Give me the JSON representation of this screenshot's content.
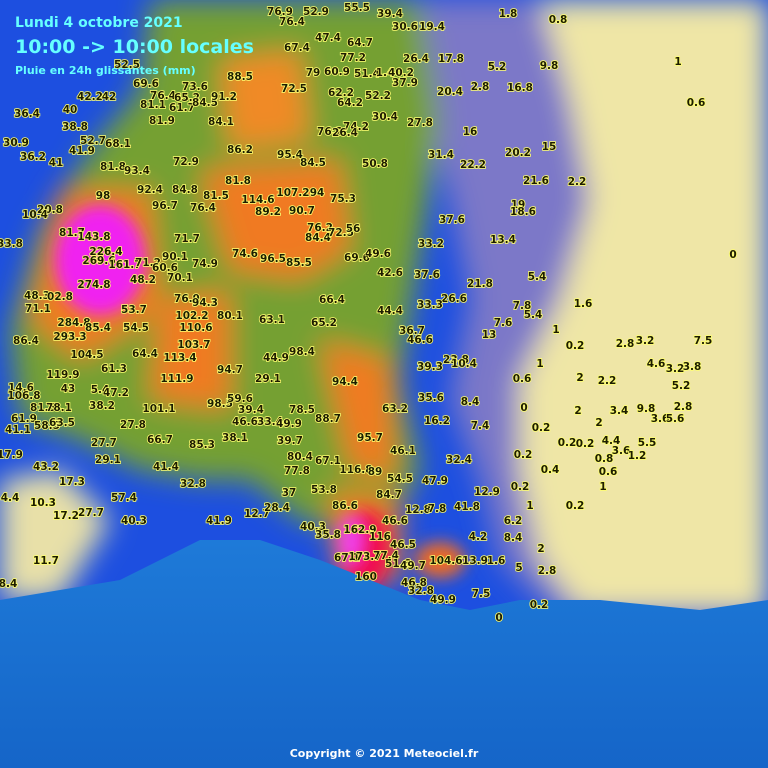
{
  "header": {
    "date": "Lundi 4 octobre 2021",
    "period": "10:00 -> 10:00 locales",
    "subtitle": "Pluie en 24h glissantes (mm)"
  },
  "footer": {
    "copyright": "Copyright © 2021 Meteociel.fr"
  },
  "stations": [
    "76.9",
    "52.9",
    "55.5",
    "39.4",
    "1.8",
    "0.8",
    "76.4",
    "30.6",
    "19.4",
    "47.4",
    "64.7",
    "67.4",
    "77.2",
    "26.4",
    "17.8",
    "5.2",
    "9.8",
    "1",
    "88.5",
    "79",
    "60.9",
    "51.4",
    "1.4",
    "40.2",
    "37.9",
    "20.4",
    "2.8",
    "16.8",
    "0.6",
    "52.5",
    "69.6",
    "76.4",
    "65.2",
    "81.1",
    "61.7",
    "84.5",
    "73.6",
    "91.2",
    "72.5",
    "62.2",
    "64.2",
    "52.2",
    "42.2",
    "42",
    "36.4",
    "40",
    "38.8",
    "81.9",
    "84.1",
    "30.4",
    "27.8",
    "16",
    "74.2",
    "76.2",
    "26.4",
    "30.9",
    "52.7",
    "68.1",
    "41.9",
    "36.2",
    "41",
    "86.2",
    "95.4",
    "84.5",
    "50.8",
    "31.4",
    "22.2",
    "20.2",
    "15",
    "81.8",
    "93.4",
    "72.9",
    "81.8",
    "21.6",
    "2.2",
    "92.4",
    "84.8",
    "81.5",
    "98",
    "114.6",
    "107.2",
    "94",
    "75.3",
    "89.2",
    "96.7",
    "76.4",
    "90.7",
    "19",
    "18.6",
    "20.8",
    "10.4",
    "37.6",
    "81.7",
    "143.8",
    "76.2",
    "84.4",
    "72.5",
    "56",
    "71.7",
    "13.4",
    "33.2",
    "33.8",
    "226.4",
    "269.6",
    "161.7",
    "71.2",
    "90.1",
    "74.6",
    "96.5",
    "85.5",
    "69.6",
    "49.6",
    "0",
    "60.6",
    "74.9",
    "70.1",
    "48.2",
    "42.6",
    "37.6",
    "5.4",
    "21.8",
    "274.8",
    "48.3",
    "02.8",
    "76.9",
    "94.3",
    "66.4",
    "26.6",
    "33.3",
    "1.6",
    "7.8",
    "71.1",
    "53.7",
    "102.2",
    "80.1",
    "63.1",
    "65.2",
    "44.4",
    "5.4",
    "7.6",
    "284.8",
    "293.3",
    "85.4",
    "54.5",
    "110.6",
    "36.7",
    "46.6",
    "13",
    "1",
    "86.4",
    "103.7",
    "64.4",
    "104.5",
    "44.9",
    "98.4",
    "0.2",
    "2.8",
    "3.2",
    "7.5",
    "61.3",
    "113.4",
    "94.7",
    "39.3",
    "23.8",
    "10.4",
    "1",
    "4.6",
    "3.2",
    "3.8",
    "119.9",
    "111.9",
    "29.1",
    "94.4",
    "0.6",
    "2",
    "2.2",
    "5.2",
    "14.6",
    "43",
    "5.4",
    "47.2",
    "35.6",
    "8.4",
    "0",
    "106.8",
    "81.5",
    "78.1",
    "38.2",
    "101.1",
    "98.5",
    "59.6",
    "39.4",
    "78.5",
    "63.2",
    "2",
    "3.4",
    "9.8",
    "2.8",
    "61.9",
    "58.5",
    "63.5",
    "27.8",
    "46.6",
    "33.4",
    "49.9",
    "88.7",
    "16.2",
    "2",
    "3.6",
    "5.6",
    "41.1",
    "66.7",
    "38.1",
    "39.7",
    "95.7",
    "7.4",
    "0.2",
    "4.4",
    "5.5",
    "0.2",
    "0.2",
    "27.7",
    "85.3",
    "80.4",
    "67.1",
    "46.1",
    "32.4",
    "0.2",
    "3.6",
    "1.2",
    "0.8",
    "17.9",
    "29.1",
    "41.4",
    "43.2",
    "77.8",
    "116.8",
    "89",
    "54.5",
    "47.9",
    "0.4",
    "0.6",
    "17.3",
    "32.8",
    "37",
    "53.8",
    "84.7",
    "12.9",
    "0.2",
    "1",
    "57.4",
    "4.4",
    "10.3",
    "86.6",
    "41.8",
    "1",
    "0.2",
    "17.2",
    "27.7",
    "40.3",
    "41.9",
    "12.7",
    "28.4",
    "12.8",
    "7.8",
    "46.6",
    "6.2",
    "40.3",
    "35.8",
    "162.9",
    "116",
    "4.2",
    "8.4",
    "46.5",
    "2",
    "11.7",
    "67.1",
    "173.7",
    "77.4",
    "51.6",
    "49.7",
    "104.6",
    "13.9",
    "1.6",
    "5",
    "2.8",
    "160",
    "46.8",
    "32.8",
    "8.4",
    "49.9",
    "7.5",
    "0.2",
    "0"
  ]
}
